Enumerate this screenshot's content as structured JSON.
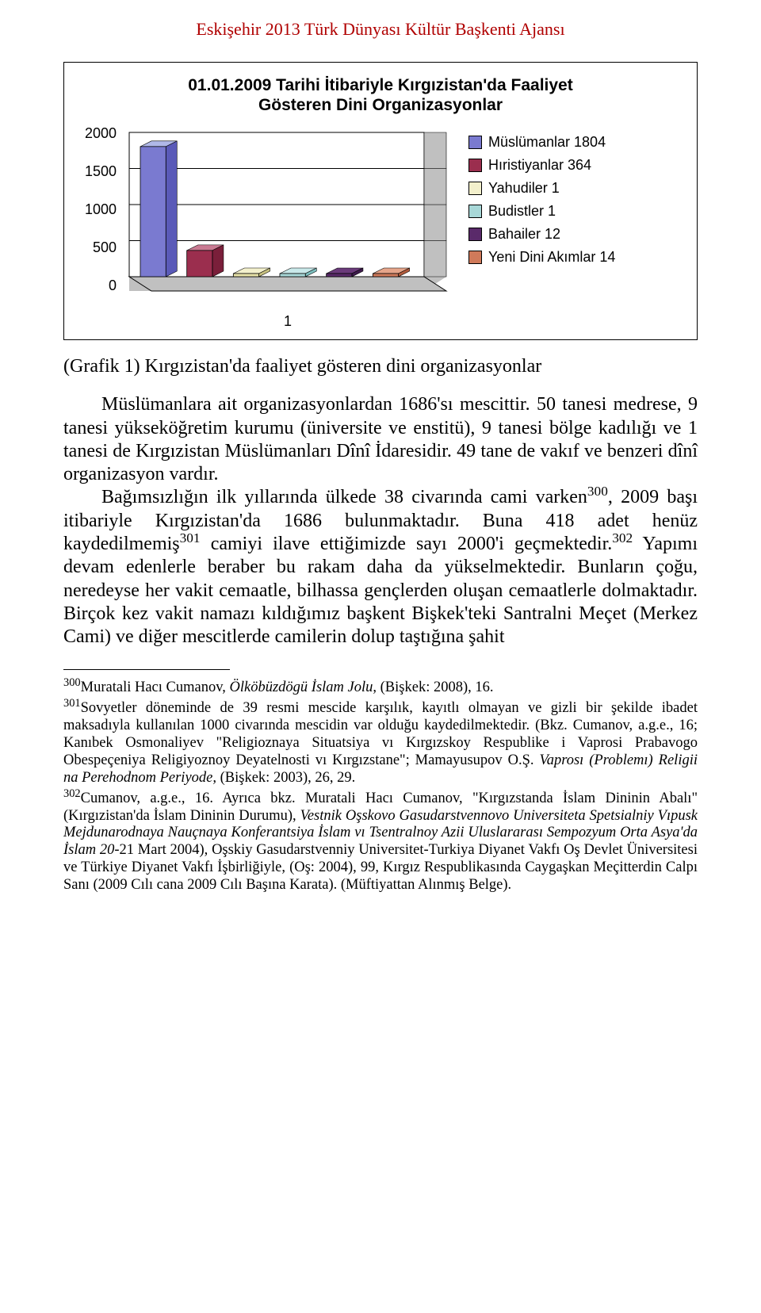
{
  "running_head": "Eskişehir 2013 Türk Dünyası Kültür Başkenti Ajansı",
  "chart": {
    "type": "bar",
    "title_line1": "01.01.2009 Tarihi İtibariyle Kırgızistan'da Faaliyet",
    "title_line2": "Gösteren Dini Organizasyonlar",
    "x_label": "1",
    "y_ticks": [
      "2000",
      "1500",
      "1000",
      "500",
      "0"
    ],
    "ylim": [
      0,
      2000
    ],
    "plot_bg": "#c0c0c0",
    "grid_fill": "#ffffff",
    "grid_stroke": "#000000",
    "series": [
      {
        "label": "Müslümanlar 1804",
        "value": 1804,
        "top_color": "#b0b8e8",
        "face_color": "#7a7ad0",
        "side_color": "#5a5ab8"
      },
      {
        "label": "Hıristiyanlar 364",
        "value": 364,
        "top_color": "#c97a92",
        "face_color": "#9b2e4e",
        "side_color": "#7a1f3a"
      },
      {
        "label": "Yahudiler 1",
        "value": 1,
        "top_color": "#f3f0cc",
        "face_color": "#e8e3a8",
        "side_color": "#c7c080"
      },
      {
        "label": "Budistler 1",
        "value": 1,
        "top_color": "#c9e9ea",
        "face_color": "#a8d8d8",
        "side_color": "#7cbebe"
      },
      {
        "label": "Bahailer 12",
        "value": 12,
        "top_color": "#6a3a7a",
        "face_color": "#5a2a6a",
        "side_color": "#3e1b4c"
      },
      {
        "label": "Yeni Dini Akımlar 14",
        "value": 14,
        "top_color": "#e6a58a",
        "face_color": "#d07a5a",
        "side_color": "#b05a3c"
      }
    ],
    "legend_swatches": [
      "#7a7ad0",
      "#9b2e4e",
      "#f3f0cc",
      "#a8d8d8",
      "#5a2a6a",
      "#d07a5a"
    ]
  },
  "caption": "(Grafik 1) Kırgızistan'da faaliyet gösteren dini organizasyonlar",
  "body": {
    "p1": "Müslümanlara ait organizasyonlardan 1686'sı mescittir. 50 tanesi medrese, 9 tanesi yükseköğretim kurumu (üniversite ve enstitü), 9 tanesi bölge kadılığı ve 1 tanesi de Kırgızistan Müslümanları Dînî İdaresidir. 49 tane de vakıf ve benzeri dînî organizasyon vardır.",
    "p2a": "Bağımsızlığın ilk yıllarında ülkede 38 civarında cami varken",
    "p2_sup1": "300",
    "p2b": ", 2009 başı itibariyle Kırgızistan'da 1686 bulunmaktadır. Buna 418 adet henüz kaydedilmemiş",
    "p2_sup2": "301",
    "p2c": " camiyi ilave ettiğimizde sayı 2000'i geçmektedir.",
    "p2_sup3": "302",
    "p2d": " Yapımı devam edenlerle beraber bu rakam daha da yükselmektedir. Bunların çoğu, neredeyse her vakit cemaatle, bilhassa gençlerden oluşan cemaatlerle dolmaktadır. Birçok kez vakit namazı kıldığımız başkent Bişkek'teki Santralni Meçet (Merkez Cami) ve diğer mescitlerde camilerin dolup taştığına şahit"
  },
  "footnotes": {
    "f300_sup": "300",
    "f300_a": "Muratali Hacı Cumanov, ",
    "f300_i": "Ölköbüzdögü İslam Jolu",
    "f300_b": ", (Bişkek: 2008), 16.",
    "f301_sup": "301",
    "f301_a": "Sovyetler döneminde de 39 resmi mescide karşılık, kayıtlı olmayan ve gizli bir şekilde ibadet maksadıyla kullanılan 1000 civarında mescidin var olduğu kaydedilmektedir. (Bkz. Cumanov, a.g.e., 16; Kanıbek Osmonaliyev \"Religioznaya Situatsiya vı Kırgızskoy Respublike i Vaprosi Prabavogo Obespeçeniya Religiyoznoy Deyatelnosti vı Kırgızstane\"; Mamayusupov O.Ş. ",
    "f301_i": "Vaprosı (Problemı) Religii na Perehodnom Periyode,",
    "f301_b": " (Bişkek: 2003), 26, 29.",
    "f302_sup": "302",
    "f302_a": "Cumanov, a.g.e., 16. Ayrıca bkz. Muratali Hacı Cumanov, \"Kırgızstanda İslam Dininin Abalı\" (Kırgızistan'da İslam Dininin Durumu), ",
    "f302_i1": "Vestnik Oşskovo Gasudarstvennovo Universiteta Spetsialniy Vıpusk Mejdunarodnaya Nauçnaya Konferantsiya İslam vı Tsentralnoy Azii Uluslararası Sempozyum Orta Asya'da İslam 20",
    "f302_b1": "-21 Mart 2004), Oşskiy Gasudarstvenniy Universitet-Turkiya Diyanet Vakfı Oş Devlet Üniversitesi ve Türkiye Diyanet Vakfı İşbirliğiyle, (Oş: 2004), 99, Kırgız Respublikasında Caygaşkan Meçitterdin Calpı Sanı (2009 Cılı cana 2009 Cılı Başına Karata). (Müftiyattan Alınmış Belge)."
  }
}
